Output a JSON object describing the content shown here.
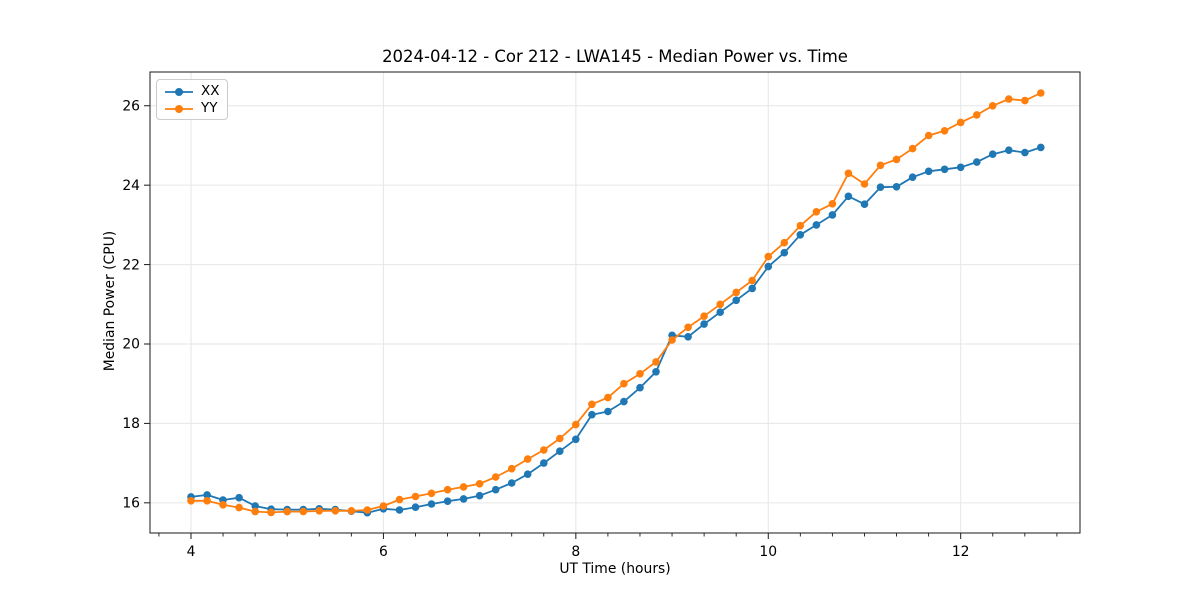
{
  "page": {
    "background": "#ffffff"
  },
  "chart_data": {
    "type": "line",
    "title": "2024-04-12 - Cor 212 - LWA145 - Median Power vs. Time",
    "xlabel": "UT Time (hours)",
    "ylabel": "Median Power (CPU)",
    "xlim": [
      3.574,
      13.24
    ],
    "ylim": [
      15.24,
      26.85
    ],
    "xticks": [
      4,
      6,
      8,
      10,
      12
    ],
    "yticks": [
      16,
      18,
      20,
      22,
      24,
      26
    ],
    "x_minor_step": 0.33333,
    "grid": true,
    "grid_color": "#e6e6e6",
    "spine_color": "#1a1a1a",
    "legend_position": "upper-left",
    "x": [
      4.0,
      4.167,
      4.333,
      4.5,
      4.667,
      4.833,
      5.0,
      5.167,
      5.333,
      5.5,
      5.667,
      5.833,
      6.0,
      6.167,
      6.333,
      6.5,
      6.667,
      6.833,
      7.0,
      7.167,
      7.333,
      7.5,
      7.667,
      7.833,
      8.0,
      8.167,
      8.333,
      8.5,
      8.667,
      8.833,
      9.0,
      9.167,
      9.333,
      9.5,
      9.667,
      9.833,
      10.0,
      10.167,
      10.333,
      10.5,
      10.667,
      10.833,
      11.0,
      11.167,
      11.333,
      11.5,
      11.667,
      11.833,
      12.0,
      12.167,
      12.333,
      12.5,
      12.667,
      12.833
    ],
    "series": [
      {
        "name": "XX",
        "color": "#1f77b4",
        "values": [
          16.15,
          16.2,
          16.07,
          16.13,
          15.92,
          15.84,
          15.83,
          15.83,
          15.85,
          15.83,
          15.79,
          15.75,
          15.85,
          15.82,
          15.89,
          15.97,
          16.04,
          16.1,
          16.18,
          16.33,
          16.5,
          16.72,
          17.0,
          17.3,
          17.6,
          18.22,
          18.3,
          18.55,
          18.9,
          19.3,
          20.22,
          20.18,
          20.5,
          20.8,
          21.1,
          21.4,
          21.95,
          22.3,
          22.75,
          23.0,
          23.25,
          23.72,
          23.52,
          23.95,
          23.96,
          24.2,
          24.35,
          24.4,
          24.45,
          24.58,
          24.78,
          24.88,
          24.82,
          24.95
        ]
      },
      {
        "name": "YY",
        "color": "#ff7f0e",
        "values": [
          16.05,
          16.05,
          15.95,
          15.88,
          15.78,
          15.76,
          15.78,
          15.78,
          15.8,
          15.8,
          15.8,
          15.82,
          15.92,
          16.08,
          16.16,
          16.24,
          16.33,
          16.4,
          16.48,
          16.65,
          16.86,
          17.1,
          17.33,
          17.62,
          17.97,
          18.48,
          18.65,
          19.0,
          19.25,
          19.55,
          20.1,
          20.42,
          20.7,
          21.0,
          21.3,
          21.6,
          22.2,
          22.55,
          22.98,
          23.33,
          23.53,
          24.3,
          24.03,
          24.5,
          24.65,
          24.92,
          25.25,
          25.37,
          25.58,
          25.77,
          26.0,
          26.17,
          26.13,
          26.32
        ]
      }
    ]
  }
}
